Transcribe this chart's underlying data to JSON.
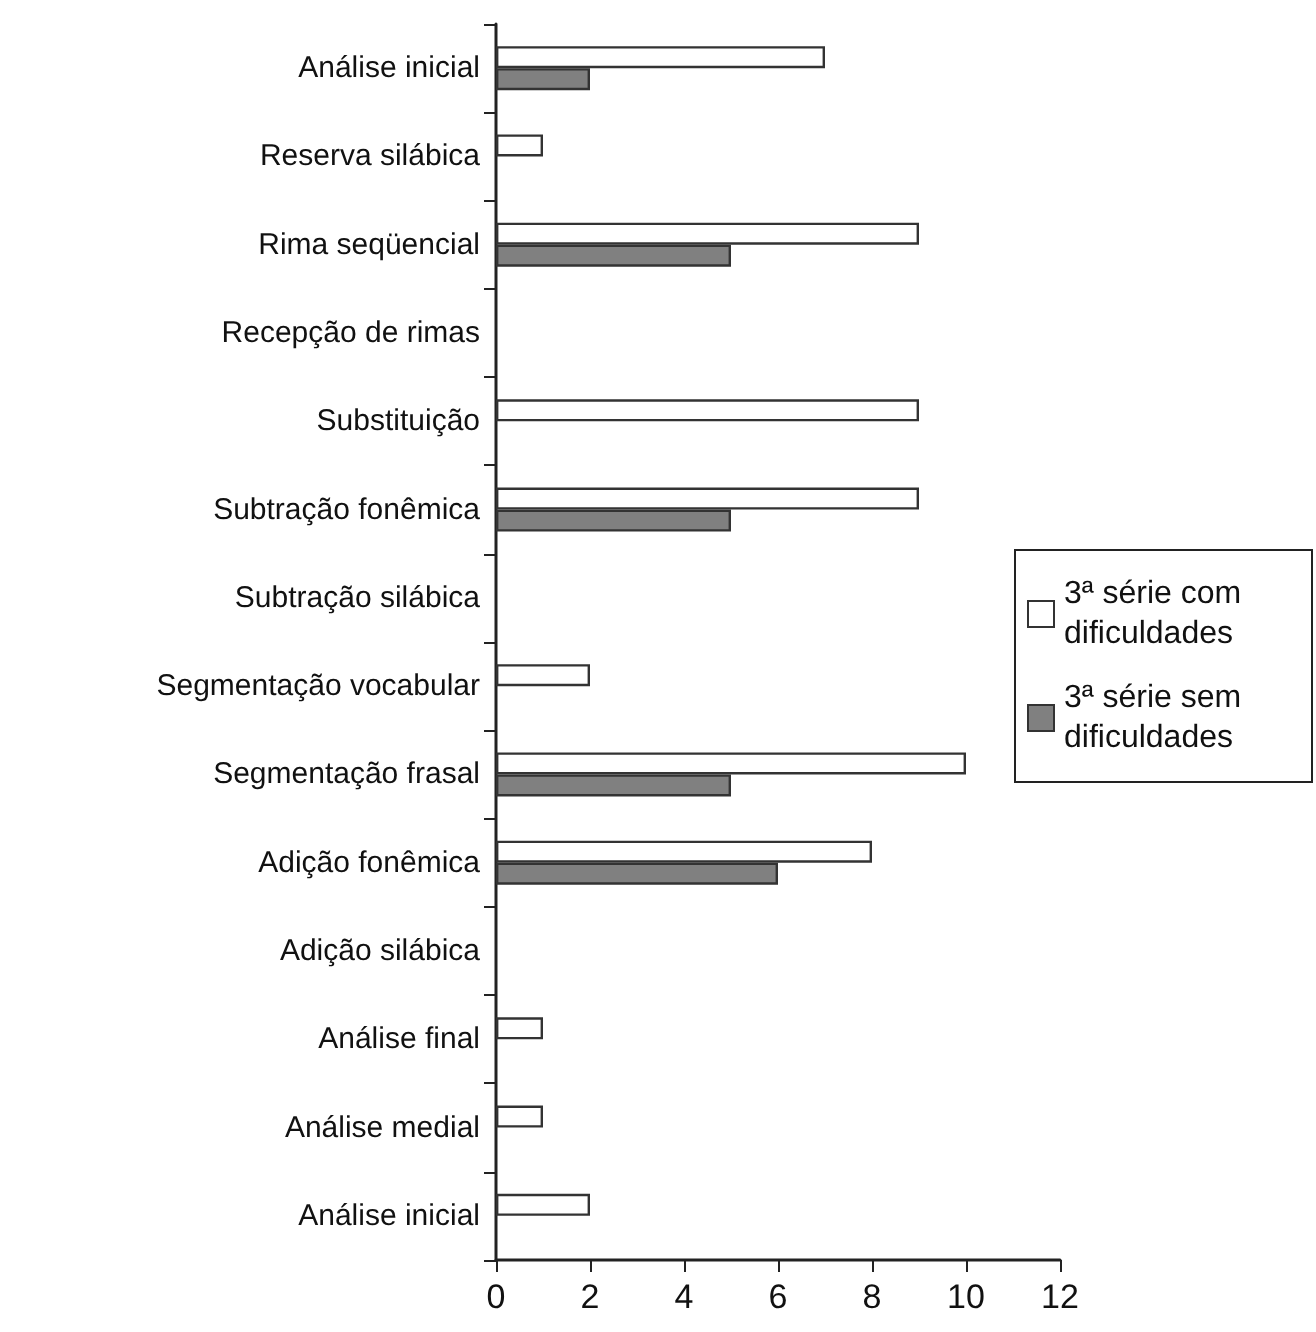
{
  "chart_data": {
    "type": "bar",
    "orientation": "horizontal",
    "categories": [
      "Análise inicial",
      "Reserva silábica",
      "Rima seqüencial",
      "Recepção de rimas",
      "Substituição",
      "Subtração fonêmica",
      "Subtração silábica",
      "Segmentação vocabular",
      "Segmentação frasal",
      "Adição fonêmica",
      "Adição silábica",
      "Análise final",
      "Análise medial",
      "Análise inicial"
    ],
    "series": [
      {
        "name": "3ª série com dificuldades",
        "color": "#ffffff",
        "values": [
          7,
          1,
          9,
          0,
          9,
          9,
          0,
          2,
          10,
          8,
          0,
          1,
          1,
          2
        ]
      },
      {
        "name": "3ª série sem dificuldades",
        "color": "#808080",
        "values": [
          2,
          0,
          5,
          0,
          0,
          5,
          0,
          0,
          5,
          6,
          0,
          0,
          0,
          0
        ]
      }
    ],
    "xlim": [
      0,
      12
    ],
    "xticks": [
      0,
      2,
      4,
      6,
      8,
      10,
      12
    ],
    "grid": false,
    "legend": "right"
  }
}
